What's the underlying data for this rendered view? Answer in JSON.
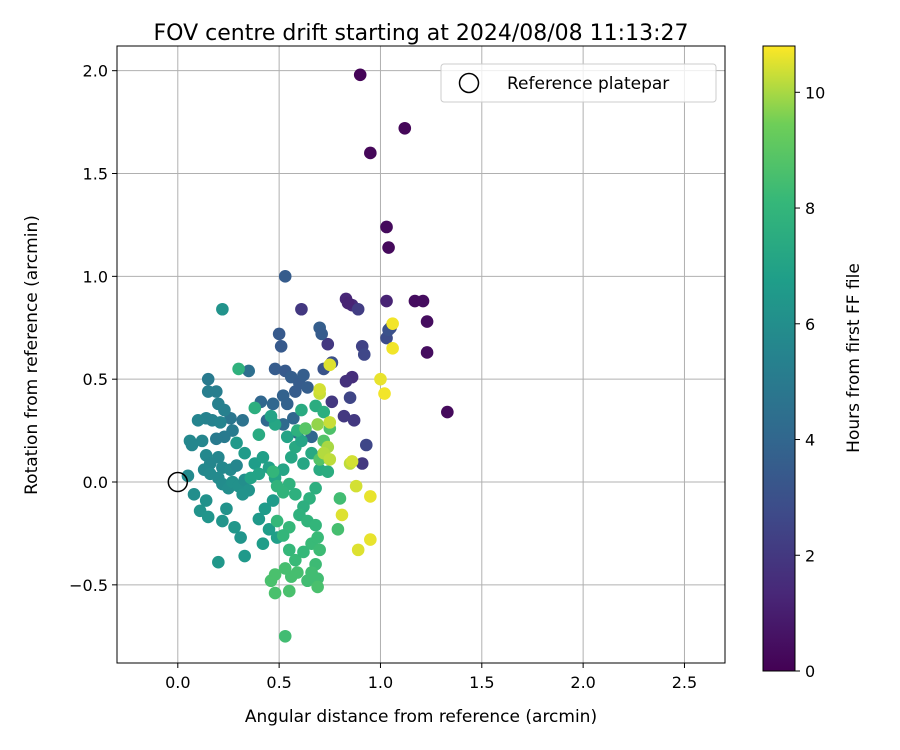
{
  "chart_data": {
    "type": "scatter",
    "title": "FOV centre drift starting at 2024/08/08 11:13:27",
    "xlabel": "Angular distance from reference (arcmin)",
    "ylabel": "Rotation from reference (arcmin)",
    "xlim": [
      -0.3,
      2.7
    ],
    "ylim": [
      -0.88,
      2.12
    ],
    "xticks": [
      "0.0",
      "0.5",
      "1.0",
      "1.5",
      "2.0",
      "2.5"
    ],
    "xtick_values": [
      0,
      0.5,
      1.0,
      1.5,
      2.0,
      2.5
    ],
    "yticks": [
      "−0.5",
      "0.0",
      "0.5",
      "1.0",
      "1.5",
      "2.0"
    ],
    "ytick_values": [
      -0.5,
      0,
      0.5,
      1.0,
      1.5,
      2.0
    ],
    "grid": true,
    "legend": {
      "placement": "top-right",
      "entries": [
        "Reference platepar"
      ]
    },
    "reference_point": {
      "x": 0.0,
      "y": 0.0
    },
    "colorbar": {
      "label": "Hours from first FF file",
      "colormap": "viridis",
      "range": [
        0,
        10.8
      ],
      "ticks": [
        "0",
        "2",
        "4",
        "6",
        "8",
        "10"
      ],
      "tick_values": [
        0,
        2,
        4,
        6,
        8,
        10
      ]
    },
    "points": [
      {
        "x": 0.9,
        "y": 1.98,
        "h": 0.1
      },
      {
        "x": 1.12,
        "y": 1.72,
        "h": 0.2
      },
      {
        "x": 0.95,
        "y": 1.6,
        "h": 0.2
      },
      {
        "x": 1.03,
        "y": 1.24,
        "h": 0.3
      },
      {
        "x": 1.04,
        "y": 1.14,
        "h": 0.3
      },
      {
        "x": 1.33,
        "y": 0.34,
        "h": 0.3
      },
      {
        "x": 1.23,
        "y": 0.78,
        "h": 0.4
      },
      {
        "x": 1.23,
        "y": 0.63,
        "h": 0.4
      },
      {
        "x": 1.17,
        "y": 0.88,
        "h": 0.4
      },
      {
        "x": 1.21,
        "y": 0.88,
        "h": 0.4
      },
      {
        "x": 1.03,
        "y": 0.88,
        "h": 1.2
      },
      {
        "x": 0.83,
        "y": 0.89,
        "h": 1.3
      },
      {
        "x": 0.86,
        "y": 0.86,
        "h": 1.5
      },
      {
        "x": 0.84,
        "y": 0.87,
        "h": 1.2
      },
      {
        "x": 0.76,
        "y": 0.58,
        "h": 1.5
      },
      {
        "x": 0.86,
        "y": 0.51,
        "h": 1.6
      },
      {
        "x": 0.83,
        "y": 0.49,
        "h": 1.7
      },
      {
        "x": 0.89,
        "y": 0.84,
        "h": 2.2
      },
      {
        "x": 0.61,
        "y": 0.84,
        "h": 2.0
      },
      {
        "x": 0.74,
        "y": 0.67,
        "h": 2.0
      },
      {
        "x": 0.76,
        "y": 0.39,
        "h": 2.0
      },
      {
        "x": 0.82,
        "y": 0.32,
        "h": 2.0
      },
      {
        "x": 0.87,
        "y": 0.3,
        "h": 2.0
      },
      {
        "x": 0.91,
        "y": 0.09,
        "h": 2.0
      },
      {
        "x": 0.91,
        "y": 0.66,
        "h": 2.4
      },
      {
        "x": 0.92,
        "y": 0.62,
        "h": 2.6
      },
      {
        "x": 0.85,
        "y": 0.41,
        "h": 2.5
      },
      {
        "x": 0.93,
        "y": 0.18,
        "h": 2.6
      },
      {
        "x": 1.03,
        "y": 0.7,
        "h": 2.8
      },
      {
        "x": 1.05,
        "y": 0.75,
        "h": 2.9
      },
      {
        "x": 1.04,
        "y": 0.74,
        "h": 3.0
      },
      {
        "x": 0.76,
        "y": 0.58,
        "h": 3.0
      },
      {
        "x": 0.72,
        "y": 0.55,
        "h": 3.1
      },
      {
        "x": 0.53,
        "y": 1.0,
        "h": 3.5
      },
      {
        "x": 0.5,
        "y": 0.72,
        "h": 3.4
      },
      {
        "x": 0.51,
        "y": 0.66,
        "h": 3.4
      },
      {
        "x": 0.7,
        "y": 0.75,
        "h": 3.6
      },
      {
        "x": 0.71,
        "y": 0.72,
        "h": 3.5
      },
      {
        "x": 0.48,
        "y": 0.55,
        "h": 3.5
      },
      {
        "x": 0.53,
        "y": 0.54,
        "h": 3.4
      },
      {
        "x": 0.56,
        "y": 0.51,
        "h": 3.6
      },
      {
        "x": 0.6,
        "y": 0.48,
        "h": 3.5
      },
      {
        "x": 0.62,
        "y": 0.52,
        "h": 3.6
      },
      {
        "x": 0.64,
        "y": 0.46,
        "h": 3.6
      },
      {
        "x": 0.58,
        "y": 0.44,
        "h": 3.5
      },
      {
        "x": 0.52,
        "y": 0.42,
        "h": 3.8
      },
      {
        "x": 0.54,
        "y": 0.38,
        "h": 3.8
      },
      {
        "x": 0.47,
        "y": 0.38,
        "h": 4.0
      },
      {
        "x": 0.41,
        "y": 0.39,
        "h": 4.0
      },
      {
        "x": 0.44,
        "y": 0.3,
        "h": 4.1
      },
      {
        "x": 0.57,
        "y": 0.31,
        "h": 4.0
      },
      {
        "x": 0.52,
        "y": 0.28,
        "h": 4.2
      },
      {
        "x": 0.59,
        "y": 0.24,
        "h": 4.2
      },
      {
        "x": 0.66,
        "y": 0.22,
        "h": 4.0
      },
      {
        "x": 0.35,
        "y": 0.54,
        "h": 4.4
      },
      {
        "x": 0.32,
        "y": 0.3,
        "h": 4.6
      },
      {
        "x": 0.26,
        "y": 0.31,
        "h": 4.8
      },
      {
        "x": 0.27,
        "y": 0.25,
        "h": 5.0
      },
      {
        "x": 0.23,
        "y": 0.22,
        "h": 5.0
      },
      {
        "x": 0.19,
        "y": 0.21,
        "h": 5.0
      },
      {
        "x": 0.15,
        "y": 0.5,
        "h": 5.0
      },
      {
        "x": 0.15,
        "y": 0.44,
        "h": 5.2
      },
      {
        "x": 0.19,
        "y": 0.44,
        "h": 5.2
      },
      {
        "x": 0.2,
        "y": 0.38,
        "h": 5.3
      },
      {
        "x": 0.23,
        "y": 0.35,
        "h": 5.3
      },
      {
        "x": 0.14,
        "y": 0.31,
        "h": 5.4
      },
      {
        "x": 0.1,
        "y": 0.3,
        "h": 5.5
      },
      {
        "x": 0.17,
        "y": 0.3,
        "h": 5.4
      },
      {
        "x": 0.21,
        "y": 0.29,
        "h": 5.5
      },
      {
        "x": 0.12,
        "y": 0.2,
        "h": 5.6
      },
      {
        "x": 0.06,
        "y": 0.2,
        "h": 5.7
      },
      {
        "x": 0.07,
        "y": 0.18,
        "h": 5.6
      },
      {
        "x": 0.2,
        "y": 0.12,
        "h": 5.6
      },
      {
        "x": 0.14,
        "y": 0.13,
        "h": 5.7
      },
      {
        "x": 0.16,
        "y": 0.09,
        "h": 5.6
      },
      {
        "x": 0.22,
        "y": 0.07,
        "h": 5.7
      },
      {
        "x": 0.26,
        "y": 0.06,
        "h": 5.8
      },
      {
        "x": 0.29,
        "y": 0.08,
        "h": 5.6
      },
      {
        "x": 0.13,
        "y": 0.06,
        "h": 5.7
      },
      {
        "x": 0.16,
        "y": 0.04,
        "h": 5.8
      },
      {
        "x": 0.2,
        "y": 0.02,
        "h": 5.8
      },
      {
        "x": 0.05,
        "y": 0.03,
        "h": 5.8
      },
      {
        "x": 0.22,
        "y": -0.01,
        "h": 5.9
      },
      {
        "x": 0.25,
        "y": -0.03,
        "h": 6.0
      },
      {
        "x": 0.27,
        "y": 0.0,
        "h": 6.1
      },
      {
        "x": 0.3,
        "y": -0.02,
        "h": 6.1
      },
      {
        "x": 0.33,
        "y": 0.01,
        "h": 6.0
      },
      {
        "x": 0.35,
        "y": -0.04,
        "h": 6.2
      },
      {
        "x": 0.32,
        "y": -0.06,
        "h": 6.2
      },
      {
        "x": 0.08,
        "y": -0.06,
        "h": 6.0
      },
      {
        "x": 0.14,
        "y": -0.09,
        "h": 6.1
      },
      {
        "x": 0.11,
        "y": -0.14,
        "h": 6.2
      },
      {
        "x": 0.15,
        "y": -0.17,
        "h": 6.3
      },
      {
        "x": 0.24,
        "y": -0.13,
        "h": 6.2
      },
      {
        "x": 0.22,
        "y": -0.19,
        "h": 6.3
      },
      {
        "x": 0.28,
        "y": -0.22,
        "h": 6.4
      },
      {
        "x": 0.31,
        "y": -0.27,
        "h": 6.3
      },
      {
        "x": 0.2,
        "y": -0.39,
        "h": 6.4
      },
      {
        "x": 0.33,
        "y": -0.36,
        "h": 6.5
      },
      {
        "x": 0.4,
        "y": -0.18,
        "h": 6.5
      },
      {
        "x": 0.43,
        "y": -0.13,
        "h": 6.6
      },
      {
        "x": 0.47,
        "y": -0.09,
        "h": 6.6
      },
      {
        "x": 0.42,
        "y": -0.3,
        "h": 6.7
      },
      {
        "x": 0.45,
        "y": -0.23,
        "h": 6.7
      },
      {
        "x": 0.49,
        "y": -0.27,
        "h": 6.8
      },
      {
        "x": 0.22,
        "y": 0.84,
        "h": 6.2
      },
      {
        "x": 0.29,
        "y": 0.19,
        "h": 6.5
      },
      {
        "x": 0.33,
        "y": 0.14,
        "h": 6.6
      },
      {
        "x": 0.38,
        "y": 0.09,
        "h": 6.7
      },
      {
        "x": 0.42,
        "y": 0.12,
        "h": 6.8
      },
      {
        "x": 0.45,
        "y": 0.07,
        "h": 6.9
      },
      {
        "x": 0.4,
        "y": 0.04,
        "h": 7.0
      },
      {
        "x": 0.36,
        "y": 0.02,
        "h": 7.0
      },
      {
        "x": 0.48,
        "y": 0.02,
        "h": 7.1
      },
      {
        "x": 0.52,
        "y": 0.06,
        "h": 7.1
      },
      {
        "x": 0.56,
        "y": 0.12,
        "h": 7.2
      },
      {
        "x": 0.62,
        "y": 0.09,
        "h": 7.2
      },
      {
        "x": 0.66,
        "y": 0.14,
        "h": 7.3
      },
      {
        "x": 0.58,
        "y": 0.17,
        "h": 7.3
      },
      {
        "x": 0.61,
        "y": 0.2,
        "h": 7.1
      },
      {
        "x": 0.54,
        "y": 0.22,
        "h": 7.0
      },
      {
        "x": 0.48,
        "y": 0.28,
        "h": 7.2
      },
      {
        "x": 0.46,
        "y": 0.32,
        "h": 7.0
      },
      {
        "x": 0.4,
        "y": 0.23,
        "h": 7.4
      },
      {
        "x": 0.38,
        "y": 0.36,
        "h": 7.6
      },
      {
        "x": 0.3,
        "y": 0.55,
        "h": 7.8
      },
      {
        "x": 0.61,
        "y": 0.35,
        "h": 7.4
      },
      {
        "x": 0.68,
        "y": 0.37,
        "h": 7.5
      },
      {
        "x": 0.72,
        "y": 0.34,
        "h": 7.6
      },
      {
        "x": 0.59,
        "y": 0.25,
        "h": 7.7
      },
      {
        "x": 0.7,
        "y": 0.06,
        "h": 7.4
      },
      {
        "x": 0.74,
        "y": 0.05,
        "h": 7.5
      },
      {
        "x": 0.68,
        "y": -0.03,
        "h": 7.6
      },
      {
        "x": 0.65,
        "y": -0.08,
        "h": 7.7
      },
      {
        "x": 0.62,
        "y": -0.12,
        "h": 7.6
      },
      {
        "x": 0.58,
        "y": -0.06,
        "h": 7.7
      },
      {
        "x": 0.55,
        "y": -0.01,
        "h": 7.8
      },
      {
        "x": 0.52,
        "y": -0.05,
        "h": 7.9
      },
      {
        "x": 0.49,
        "y": -0.02,
        "h": 7.9
      },
      {
        "x": 0.47,
        "y": 0.05,
        "h": 8.0
      },
      {
        "x": 0.6,
        "y": -0.16,
        "h": 7.8
      },
      {
        "x": 0.64,
        "y": -0.19,
        "h": 7.9
      },
      {
        "x": 0.68,
        "y": -0.21,
        "h": 8.0
      },
      {
        "x": 0.55,
        "y": -0.22,
        "h": 8.1
      },
      {
        "x": 0.52,
        "y": -0.26,
        "h": 8.0
      },
      {
        "x": 0.49,
        "y": -0.19,
        "h": 8.1
      },
      {
        "x": 0.55,
        "y": -0.33,
        "h": 8.1
      },
      {
        "x": 0.58,
        "y": -0.38,
        "h": 8.2
      },
      {
        "x": 0.62,
        "y": -0.34,
        "h": 8.1
      },
      {
        "x": 0.66,
        "y": -0.3,
        "h": 8.2
      },
      {
        "x": 0.69,
        "y": -0.27,
        "h": 8.2
      },
      {
        "x": 0.7,
        "y": -0.33,
        "h": 8.3
      },
      {
        "x": 0.68,
        "y": -0.4,
        "h": 8.3
      },
      {
        "x": 0.66,
        "y": -0.44,
        "h": 8.4
      },
      {
        "x": 0.69,
        "y": -0.47,
        "h": 8.4
      },
      {
        "x": 0.64,
        "y": -0.48,
        "h": 8.4
      },
      {
        "x": 0.59,
        "y": -0.44,
        "h": 8.5
      },
      {
        "x": 0.56,
        "y": -0.46,
        "h": 8.5
      },
      {
        "x": 0.53,
        "y": -0.42,
        "h": 8.5
      },
      {
        "x": 0.48,
        "y": -0.45,
        "h": 8.6
      },
      {
        "x": 0.46,
        "y": -0.48,
        "h": 8.6
      },
      {
        "x": 0.48,
        "y": -0.54,
        "h": 8.6
      },
      {
        "x": 0.55,
        "y": -0.53,
        "h": 8.6
      },
      {
        "x": 0.69,
        "y": -0.51,
        "h": 8.6
      },
      {
        "x": 0.53,
        "y": -0.75,
        "h": 8.4
      },
      {
        "x": 0.8,
        "y": -0.08,
        "h": 8.4
      },
      {
        "x": 0.79,
        "y": -0.23,
        "h": 8.5
      },
      {
        "x": 0.75,
        "y": 0.26,
        "h": 8.7
      },
      {
        "x": 0.72,
        "y": 0.2,
        "h": 8.8
      },
      {
        "x": 0.7,
        "y": 0.11,
        "h": 8.8
      },
      {
        "x": 0.63,
        "y": 0.26,
        "h": 8.9
      },
      {
        "x": 0.69,
        "y": 0.28,
        "h": 9.8
      },
      {
        "x": 0.74,
        "y": 0.17,
        "h": 10.0
      },
      {
        "x": 0.72,
        "y": 0.14,
        "h": 10.1
      },
      {
        "x": 0.75,
        "y": 0.11,
        "h": 10.2
      },
      {
        "x": 0.75,
        "y": 0.29,
        "h": 10.3
      },
      {
        "x": 0.7,
        "y": 0.43,
        "h": 10.3
      },
      {
        "x": 0.7,
        "y": 0.45,
        "h": 10.4
      },
      {
        "x": 0.75,
        "y": 0.57,
        "h": 10.5
      },
      {
        "x": 0.85,
        "y": 0.09,
        "h": 10.2
      },
      {
        "x": 0.86,
        "y": 0.1,
        "h": 10.4
      },
      {
        "x": 0.88,
        "y": -0.02,
        "h": 10.4
      },
      {
        "x": 0.81,
        "y": -0.16,
        "h": 10.5
      },
      {
        "x": 0.89,
        "y": -0.33,
        "h": 10.5
      },
      {
        "x": 0.95,
        "y": -0.28,
        "h": 10.6
      },
      {
        "x": 0.95,
        "y": -0.07,
        "h": 10.6
      },
      {
        "x": 1.0,
        "y": 0.5,
        "h": 10.6
      },
      {
        "x": 1.02,
        "y": 0.43,
        "h": 10.7
      },
      {
        "x": 1.06,
        "y": 0.65,
        "h": 10.7
      },
      {
        "x": 1.06,
        "y": 0.77,
        "h": 10.7
      }
    ]
  }
}
